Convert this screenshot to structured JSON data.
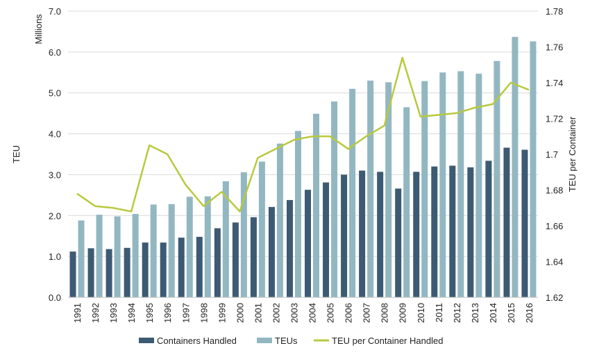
{
  "chart_data": {
    "type": "bar",
    "categories": [
      "1991",
      "1992",
      "1993",
      "1994",
      "1995",
      "1996",
      "1997",
      "1998",
      "1999",
      "2000",
      "2001",
      "2002",
      "2003",
      "2004",
      "2005",
      "2006",
      "2007",
      "2008",
      "2009",
      "2010",
      "2011",
      "2012",
      "2013",
      "2014",
      "2015",
      "2016"
    ],
    "series": [
      {
        "name": "Containers Handled",
        "type": "bar",
        "axis": "left",
        "color": "#3d5a73",
        "values": [
          1.12,
          1.2,
          1.18,
          1.21,
          1.34,
          1.34,
          1.46,
          1.48,
          1.69,
          1.83,
          1.96,
          2.21,
          2.38,
          2.63,
          2.81,
          3.0,
          3.1,
          3.07,
          2.66,
          3.07,
          3.2,
          3.22,
          3.18,
          3.34,
          3.66,
          3.61
        ]
      },
      {
        "name": "TEUs",
        "type": "bar",
        "axis": "left",
        "color": "#93b7c1",
        "values": [
          1.88,
          2.02,
          1.98,
          2.04,
          2.27,
          2.28,
          2.46,
          2.47,
          2.84,
          3.06,
          3.32,
          3.76,
          4.07,
          4.49,
          4.79,
          5.1,
          5.3,
          5.26,
          4.65,
          5.29,
          5.5,
          5.53,
          5.47,
          5.78,
          6.37,
          6.26
        ]
      },
      {
        "name": "TEU per Container Handled",
        "type": "line",
        "axis": "right",
        "color": "#b8c93d",
        "values": [
          1.678,
          1.671,
          1.67,
          1.668,
          1.705,
          1.7,
          1.683,
          1.671,
          1.679,
          1.668,
          1.698,
          1.703,
          1.708,
          1.71,
          1.71,
          1.703,
          1.71,
          1.716,
          1.754,
          1.721,
          1.722,
          1.723,
          1.726,
          1.728,
          1.74,
          1.736
        ]
      }
    ],
    "y_left": {
      "label": "TEU",
      "unit_label": "Millions",
      "ylim": [
        0,
        7
      ],
      "ticks": [
        "0.0",
        "1.0",
        "2.0",
        "3.0",
        "4.0",
        "5.0",
        "6.0",
        "7.0"
      ]
    },
    "y_right": {
      "label": "TEU per Container",
      "ylim": [
        1.62,
        1.78
      ],
      "ticks": [
        "1.62",
        "1.64",
        "1.66",
        "1.68",
        "1.7",
        "1.72",
        "1.74",
        "1.76",
        "1.78"
      ]
    },
    "grid": true,
    "legend_position": "bottom"
  }
}
